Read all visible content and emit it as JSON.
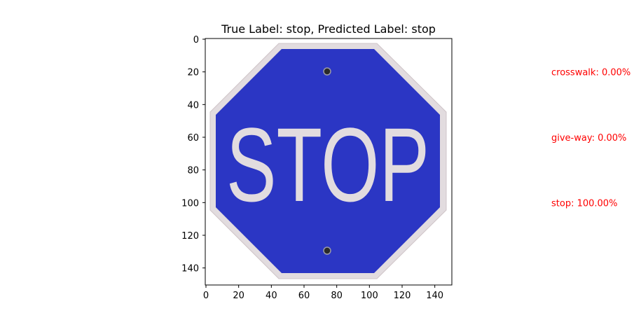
{
  "title": "True Label: stop, Predicted Label: stop",
  "image": {
    "sign_text": "STOP",
    "sign_color": "#2b36c4",
    "border_color": "#e2dcdf",
    "bolt_color": "#2a2a2a"
  },
  "axes": {
    "xlim": [
      0,
      150
    ],
    "ylim": [
      150,
      0
    ],
    "x_ticks": [
      "0",
      "20",
      "40",
      "60",
      "80",
      "100",
      "120",
      "140"
    ],
    "y_ticks": [
      "0",
      "20",
      "40",
      "60",
      "80",
      "100",
      "120",
      "140"
    ]
  },
  "predictions": [
    {
      "text": "crosswalk: 0.00%",
      "label": "crosswalk",
      "probability": 0.0
    },
    {
      "text": "give-way: 0.00%",
      "label": "give-way",
      "probability": 0.0
    },
    {
      "text": "stop: 100.00%",
      "label": "stop",
      "probability": 100.0
    }
  ],
  "prediction_color": "#ff0000"
}
